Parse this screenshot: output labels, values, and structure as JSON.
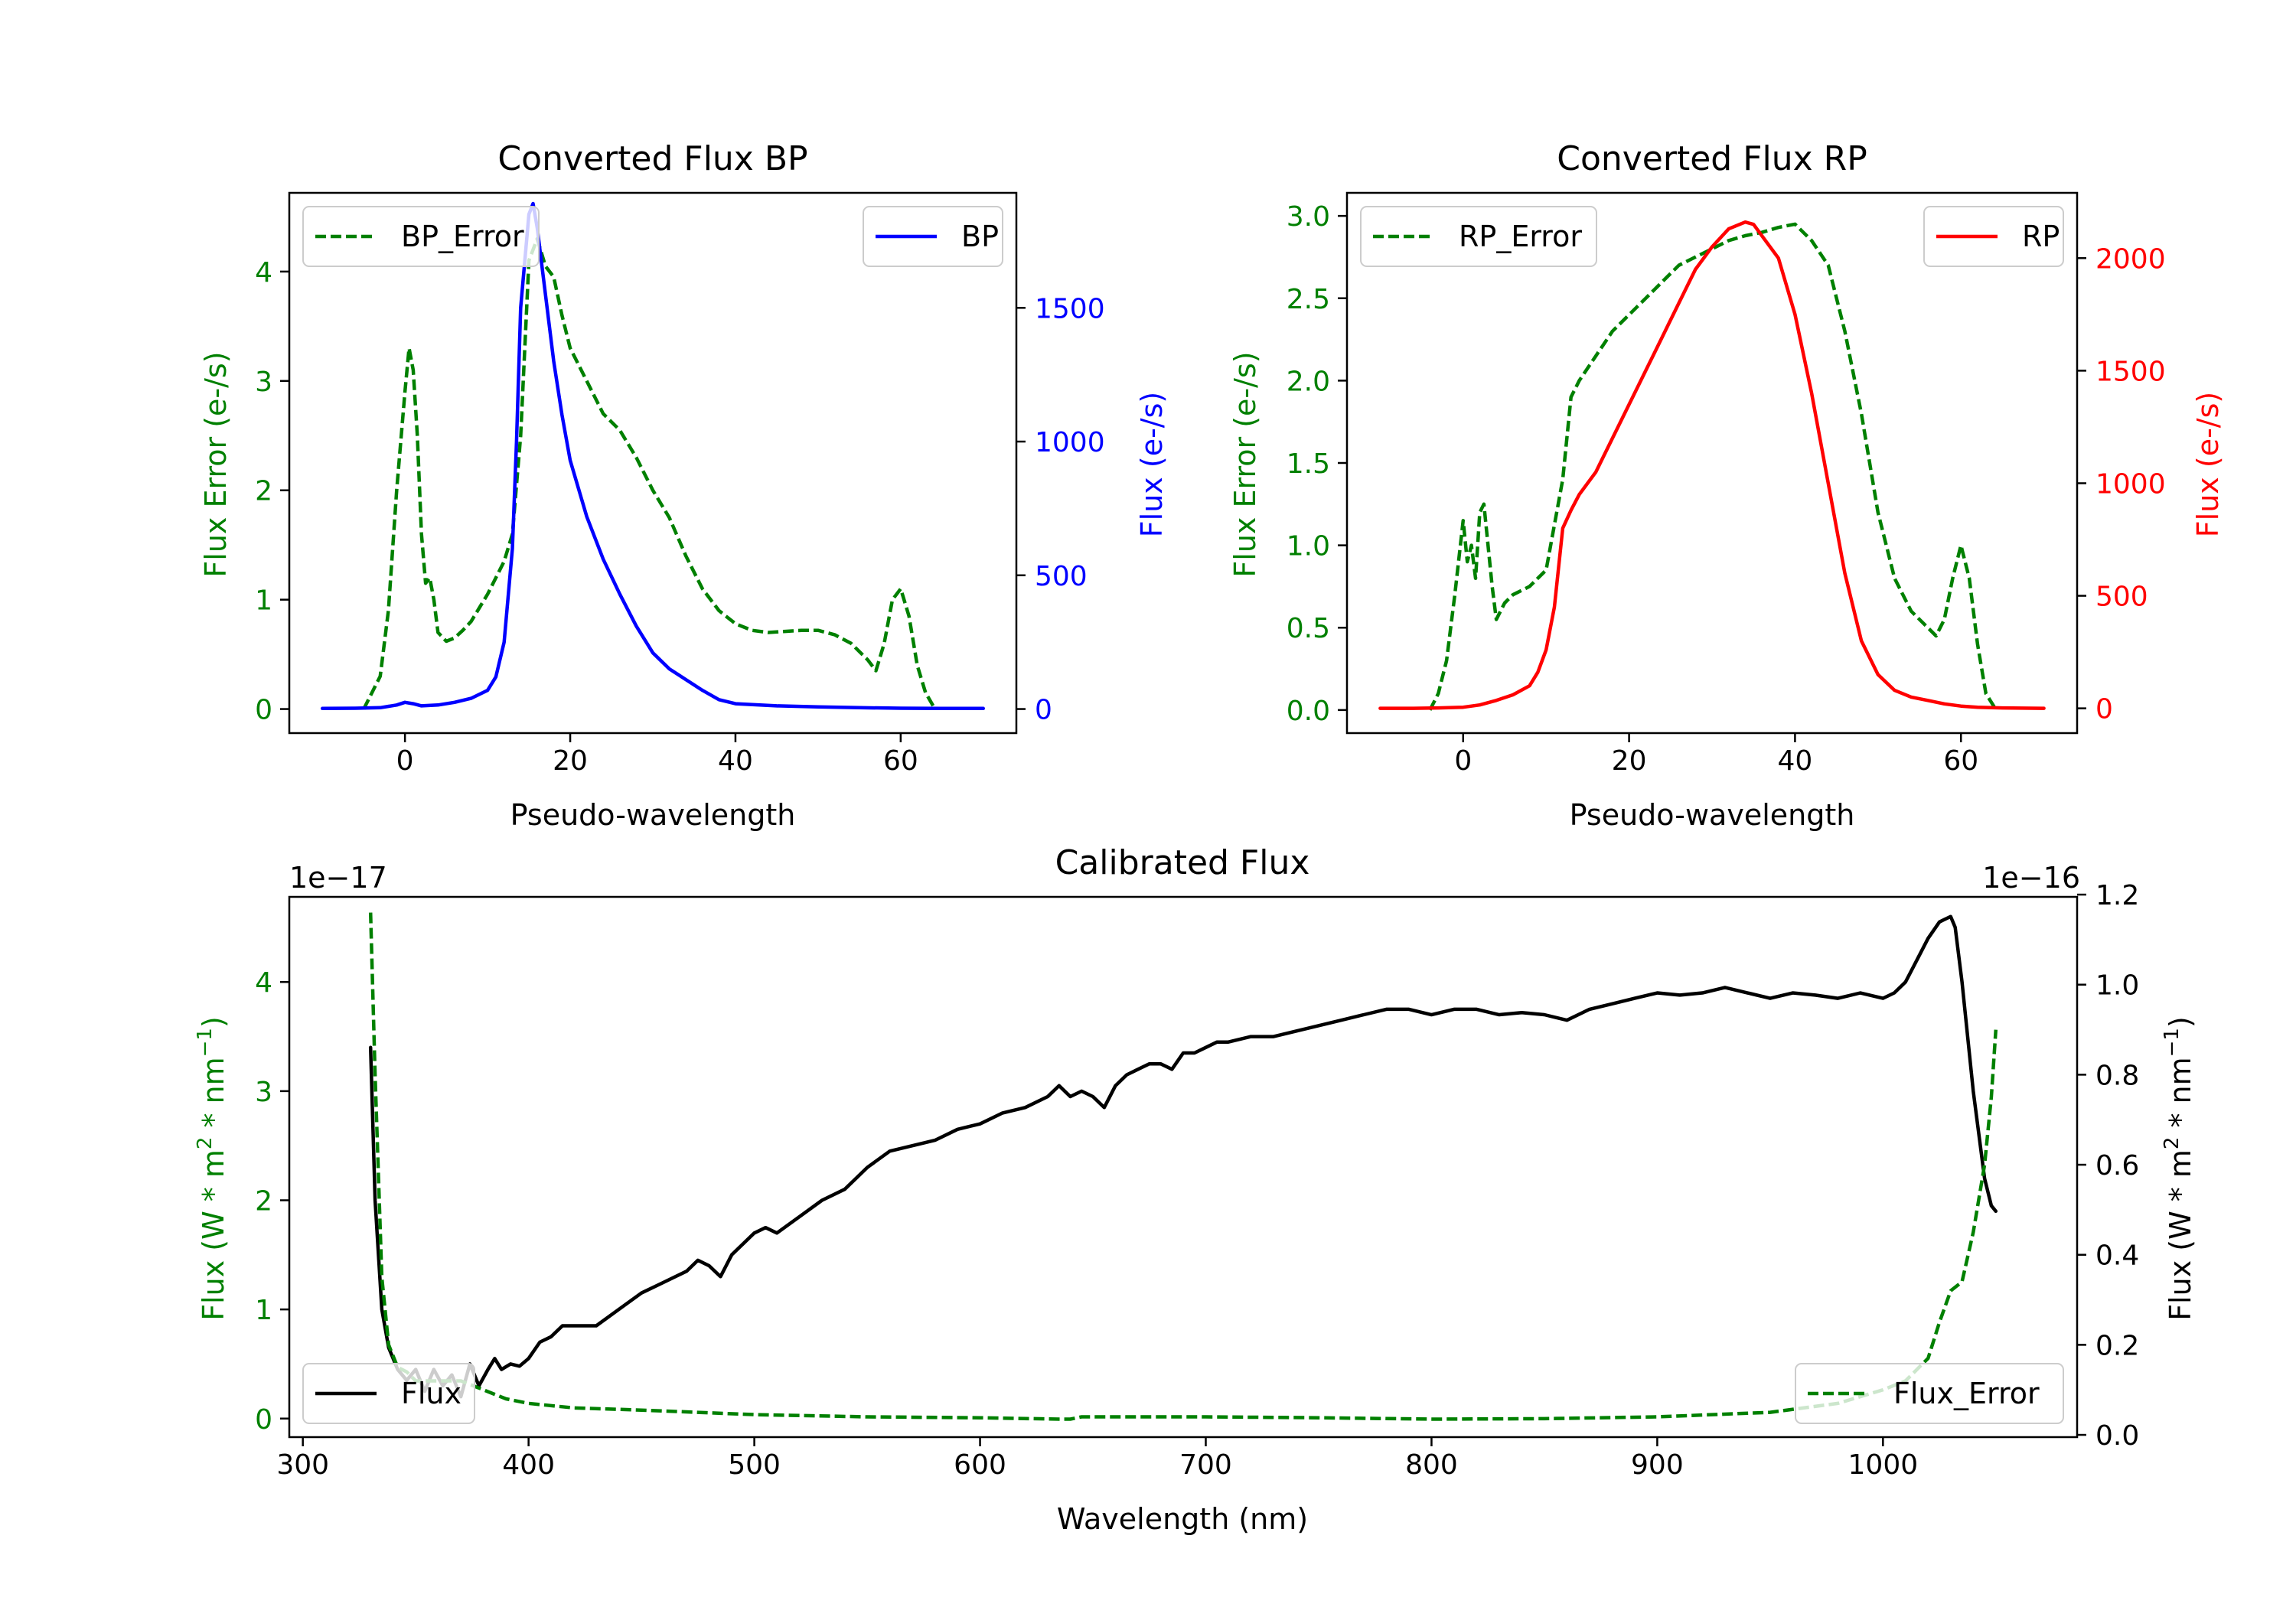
{
  "colors": {
    "green": "#008000",
    "blue": "#0000ff",
    "red": "#ff0000",
    "black": "#000000"
  },
  "chart_data": [
    {
      "id": "bp",
      "type": "line",
      "title": "Converted Flux BP",
      "xlabel": "Pseudo-wavelength",
      "ylabel_left": "Flux Error (e-/s)",
      "ylabel_right": "Flux (e-/s)",
      "xlim": [
        -14,
        74
      ],
      "ylim_left": [
        -0.22,
        4.72
      ],
      "ylim_right": [
        -90,
        1930
      ],
      "xticks": [
        0,
        20,
        40,
        60
      ],
      "yticks_left": [
        0,
        1,
        2,
        3,
        4
      ],
      "yticks_right": [
        0,
        500,
        1000,
        1500
      ],
      "right_color": "blue",
      "legend_left": "top-left",
      "legend_right": "top-right",
      "series": [
        {
          "name": "BP_Error",
          "axis": "left",
          "color": "green",
          "dash": true,
          "x": [
            -5,
            -3,
            -2,
            -1,
            0,
            0.5,
            1,
            1.5,
            2,
            2.5,
            3,
            3.5,
            4,
            5,
            6,
            7,
            8,
            10,
            12,
            13,
            14,
            15,
            16,
            17,
            18,
            19,
            20,
            22,
            24,
            26,
            28,
            30,
            32,
            34,
            36,
            38,
            40,
            42,
            44,
            46,
            48,
            50,
            52,
            54,
            56,
            57,
            58,
            59,
            60,
            61,
            62,
            63,
            64
          ],
          "values": [
            0,
            0.3,
            0.9,
            2.0,
            2.9,
            3.3,
            3.1,
            2.5,
            1.6,
            1.15,
            1.2,
            1.0,
            0.7,
            0.62,
            0.65,
            0.72,
            0.8,
            1.05,
            1.35,
            1.6,
            2.5,
            4.1,
            4.3,
            4.05,
            3.95,
            3.6,
            3.3,
            3.0,
            2.7,
            2.55,
            2.3,
            2.0,
            1.75,
            1.4,
            1.1,
            0.9,
            0.78,
            0.72,
            0.7,
            0.71,
            0.72,
            0.72,
            0.68,
            0.6,
            0.45,
            0.35,
            0.6,
            1.0,
            1.1,
            0.85,
            0.4,
            0.15,
            0.02
          ]
        },
        {
          "name": "BP",
          "axis": "right",
          "color": "blue",
          "dash": false,
          "x": [
            -10,
            -6,
            -3,
            -1,
            0,
            1,
            2,
            4,
            6,
            8,
            10,
            11,
            12,
            13,
            13.5,
            14,
            15,
            15.5,
            16,
            17,
            18,
            19,
            20,
            22,
            24,
            26,
            28,
            30,
            32,
            34,
            36,
            38,
            40,
            45,
            50,
            55,
            60,
            65,
            70
          ],
          "values": [
            2,
            3,
            5,
            15,
            25,
            20,
            12,
            15,
            25,
            40,
            70,
            120,
            250,
            600,
            1000,
            1500,
            1850,
            1890,
            1800,
            1550,
            1300,
            1100,
            930,
            720,
            560,
            430,
            310,
            210,
            150,
            110,
            70,
            35,
            20,
            12,
            8,
            5,
            3,
            2,
            2
          ]
        }
      ]
    },
    {
      "id": "rp",
      "type": "line",
      "title": "Converted Flux RP",
      "xlabel": "Pseudo-wavelength",
      "ylabel_left": "Flux Error (e-/s)",
      "ylabel_right": "Flux (e-/s)",
      "xlim": [
        -14,
        74
      ],
      "ylim_left": [
        -0.14,
        3.14
      ],
      "ylim_right": [
        -110,
        2290
      ],
      "xticks": [
        0,
        20,
        40,
        60
      ],
      "yticks_left": [
        0.0,
        0.5,
        1.0,
        1.5,
        2.0,
        2.5,
        3.0
      ],
      "yticks_right": [
        0,
        500,
        1000,
        1500,
        2000
      ],
      "right_color": "red",
      "legend_left": "top-left",
      "legend_right": "top-right",
      "series": [
        {
          "name": "RP_Error",
          "axis": "left",
          "color": "green",
          "dash": true,
          "x": [
            -4,
            -3,
            -2,
            -1,
            0,
            0.5,
            1,
            1.5,
            2,
            2.5,
            3,
            3.5,
            4,
            5,
            6,
            8,
            10,
            12,
            13,
            14,
            16,
            18,
            20,
            22,
            24,
            26,
            28,
            30,
            32,
            34,
            36,
            38,
            40,
            41,
            42,
            44,
            46,
            48,
            50,
            52,
            54,
            56,
            57,
            58,
            59,
            60,
            61,
            62,
            63,
            64
          ],
          "values": [
            0,
            0.1,
            0.3,
            0.7,
            1.15,
            0.9,
            1.0,
            0.8,
            1.2,
            1.25,
            1.0,
            0.75,
            0.55,
            0.65,
            0.7,
            0.75,
            0.85,
            1.4,
            1.9,
            2.0,
            2.15,
            2.3,
            2.4,
            2.5,
            2.6,
            2.7,
            2.75,
            2.8,
            2.85,
            2.88,
            2.9,
            2.93,
            2.95,
            2.9,
            2.85,
            2.7,
            2.3,
            1.8,
            1.2,
            0.8,
            0.6,
            0.5,
            0.45,
            0.55,
            0.8,
            1.0,
            0.8,
            0.4,
            0.1,
            0.02
          ]
        },
        {
          "name": "RP",
          "axis": "right",
          "color": "red",
          "dash": false,
          "x": [
            -10,
            -6,
            -3,
            0,
            2,
            4,
            6,
            8,
            9,
            10,
            11,
            12,
            13,
            14,
            16,
            18,
            20,
            22,
            24,
            26,
            28,
            30,
            32,
            34,
            35,
            36,
            38,
            40,
            42,
            44,
            46,
            48,
            50,
            52,
            54,
            56,
            58,
            60,
            62,
            65,
            70
          ],
          "values": [
            0,
            0,
            2,
            5,
            15,
            35,
            60,
            100,
            160,
            260,
            450,
            800,
            880,
            950,
            1050,
            1200,
            1350,
            1500,
            1650,
            1800,
            1950,
            2050,
            2130,
            2160,
            2150,
            2100,
            2000,
            1750,
            1400,
            1000,
            600,
            300,
            150,
            80,
            50,
            35,
            20,
            10,
            5,
            2,
            0
          ]
        }
      ]
    },
    {
      "id": "cal",
      "type": "line",
      "title": "Calibrated Flux",
      "xlabel": "Wavelength (nm)",
      "ylabel_left": "Flux (W * m$^2$ * nm$^{-1}$)",
      "ylabel_right": "Flux (W * m$^2$ * nm$^{-1}$)",
      "offset_left": "1e−17",
      "offset_right": "1e−16",
      "xlim": [
        294,
        1086
      ],
      "ylim_left": [
        -0.17,
        4.78
      ],
      "ylim_right": [
        -0.005,
        1.195
      ],
      "xticks": [
        300,
        400,
        500,
        600,
        700,
        800,
        900,
        1000
      ],
      "yticks_left": [
        0,
        1,
        2,
        3,
        4
      ],
      "yticks_right": [
        0.0,
        0.2,
        0.4,
        0.6,
        0.8,
        1.0,
        1.2
      ],
      "right_color": "black",
      "legend_left": "bottom-left",
      "legend_right": "bottom-right",
      "series": [
        {
          "name": "Flux",
          "axis": "left",
          "color": "black",
          "dash": false,
          "x": [
            330,
            332,
            335,
            338,
            342,
            346,
            350,
            354,
            358,
            362,
            366,
            370,
            374,
            378,
            382,
            385,
            388,
            392,
            396,
            400,
            405,
            410,
            415,
            420,
            430,
            440,
            450,
            460,
            470,
            475,
            480,
            485,
            490,
            500,
            505,
            510,
            520,
            530,
            540,
            550,
            560,
            570,
            580,
            590,
            600,
            610,
            620,
            630,
            635,
            640,
            645,
            650,
            655,
            660,
            665,
            670,
            675,
            680,
            685,
            690,
            695,
            700,
            705,
            710,
            720,
            730,
            740,
            750,
            760,
            770,
            780,
            790,
            800,
            810,
            820,
            830,
            840,
            850,
            860,
            870,
            880,
            890,
            900,
            910,
            920,
            930,
            940,
            950,
            960,
            970,
            980,
            990,
            1000,
            1005,
            1010,
            1015,
            1020,
            1025,
            1028,
            1030,
            1032,
            1035,
            1040,
            1045,
            1048,
            1050
          ],
          "values": [
            3.4,
            2.0,
            1.0,
            0.65,
            0.45,
            0.35,
            0.45,
            0.25,
            0.45,
            0.3,
            0.4,
            0.2,
            0.5,
            0.3,
            0.45,
            0.55,
            0.45,
            0.5,
            0.48,
            0.55,
            0.7,
            0.75,
            0.85,
            0.85,
            0.85,
            1.0,
            1.15,
            1.25,
            1.35,
            1.45,
            1.4,
            1.3,
            1.5,
            1.7,
            1.75,
            1.7,
            1.85,
            2.0,
            2.1,
            2.3,
            2.45,
            2.5,
            2.55,
            2.65,
            2.7,
            2.8,
            2.85,
            2.95,
            3.05,
            2.95,
            3.0,
            2.95,
            2.85,
            3.05,
            3.15,
            3.2,
            3.25,
            3.25,
            3.2,
            3.35,
            3.35,
            3.4,
            3.45,
            3.45,
            3.5,
            3.5,
            3.55,
            3.6,
            3.65,
            3.7,
            3.75,
            3.75,
            3.7,
            3.75,
            3.75,
            3.7,
            3.72,
            3.7,
            3.65,
            3.75,
            3.8,
            3.85,
            3.9,
            3.88,
            3.9,
            3.95,
            3.9,
            3.85,
            3.9,
            3.88,
            3.85,
            3.9,
            3.85,
            3.9,
            4.0,
            4.2,
            4.4,
            4.55,
            4.58,
            4.6,
            4.5,
            4.0,
            3.0,
            2.2,
            1.95,
            1.9
          ]
        },
        {
          "name": "Flux_Error",
          "axis": "right",
          "color": "green",
          "dash": true,
          "x": [
            330,
            332,
            335,
            338,
            342,
            346,
            350,
            360,
            370,
            380,
            390,
            400,
            420,
            450,
            500,
            550,
            600,
            635,
            640,
            645,
            650,
            700,
            750,
            800,
            850,
            900,
            950,
            980,
            1000,
            1010,
            1020,
            1025,
            1030,
            1035,
            1040,
            1045,
            1048,
            1050
          ],
          "values": [
            1.16,
            0.8,
            0.35,
            0.2,
            0.15,
            0.14,
            0.12,
            0.12,
            0.12,
            0.1,
            0.08,
            0.07,
            0.06,
            0.055,
            0.045,
            0.04,
            0.038,
            0.035,
            0.035,
            0.04,
            0.04,
            0.04,
            0.038,
            0.035,
            0.036,
            0.04,
            0.05,
            0.07,
            0.1,
            0.12,
            0.17,
            0.25,
            0.32,
            0.34,
            0.45,
            0.6,
            0.75,
            0.9
          ]
        }
      ]
    }
  ]
}
